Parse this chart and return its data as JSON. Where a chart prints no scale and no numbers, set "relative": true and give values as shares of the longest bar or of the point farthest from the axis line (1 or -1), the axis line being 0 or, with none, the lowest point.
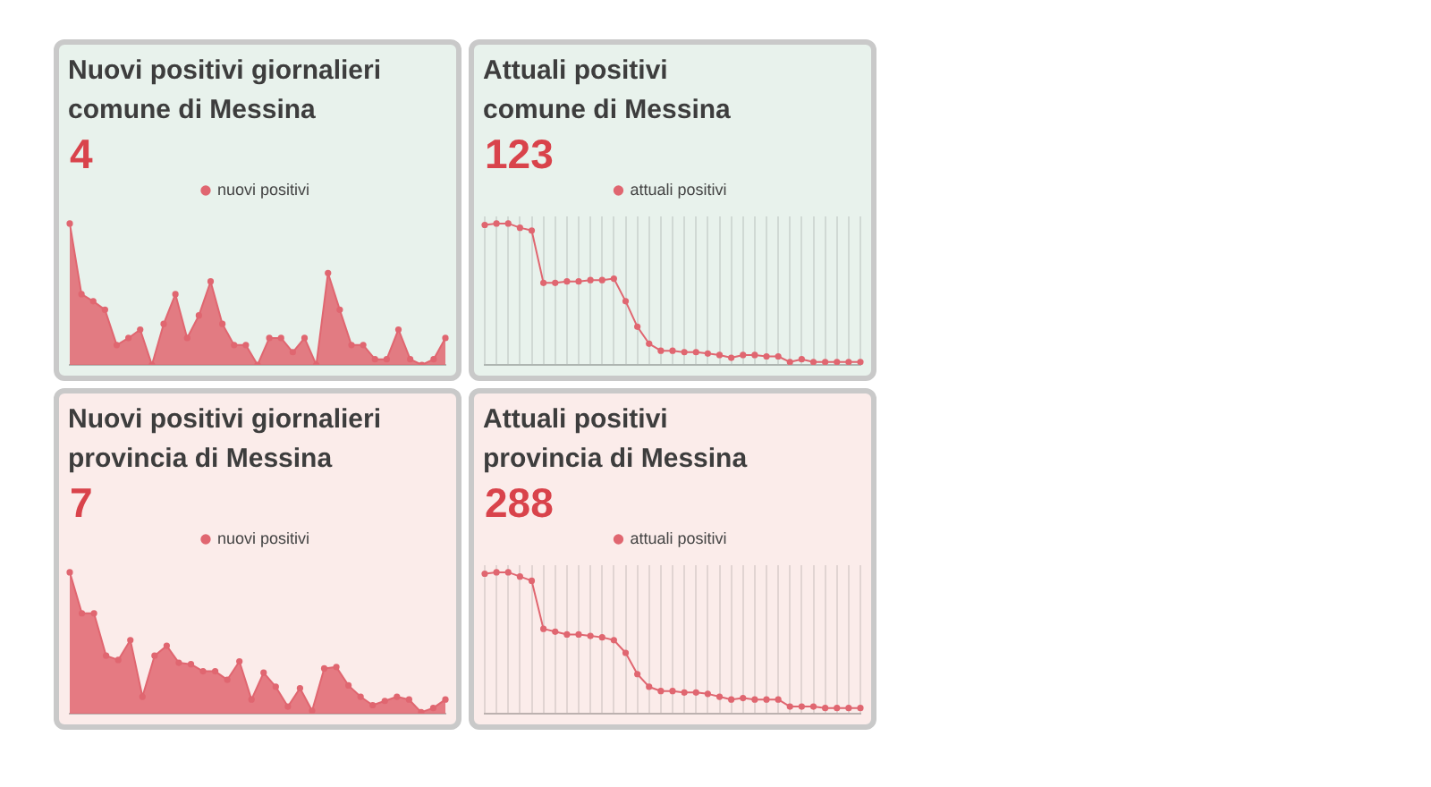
{
  "chart_data": [
    {
      "type": "area",
      "title": "Nuovi positivi giornalieri\ncomune di Messina",
      "subtitle": "4",
      "relative": true,
      "legend": "top",
      "marker": "circle",
      "categories": [
        null,
        null,
        null,
        null,
        null,
        null,
        null,
        null,
        null,
        null,
        null,
        null,
        null,
        null,
        null,
        null,
        null,
        null,
        null,
        null,
        null,
        null,
        null,
        null,
        null,
        null,
        null,
        null,
        null,
        null,
        null,
        null,
        null
      ],
      "series": [
        {
          "name": "nuovi positivi",
          "color": "#e06670",
          "values": [
            1,
            0.5,
            0.45,
            0.39,
            0.14,
            0.19,
            0.25,
            0,
            0.29,
            0.5,
            0.19,
            0.35,
            0.59,
            0.29,
            0.14,
            0.14,
            0,
            0.19,
            0.19,
            0.09,
            0.19,
            0,
            0.65,
            0.39,
            0.14,
            0.14,
            0.04,
            0.04,
            0.25,
            0.04,
            0,
            0.04,
            0.19
          ]
        }
      ]
    },
    {
      "type": "line",
      "title": "Attuali positivi\ncomune di Messina",
      "subtitle": "123",
      "relative": true,
      "legend": "top",
      "marker": "circle",
      "grid": "x",
      "categories": [
        null,
        null,
        null,
        null,
        null,
        null,
        null,
        null,
        null,
        null,
        null,
        null,
        null,
        null,
        null,
        null,
        null,
        null,
        null,
        null,
        null,
        null,
        null,
        null,
        null,
        null,
        null,
        null,
        null,
        null,
        null,
        null,
        null
      ],
      "series": [
        {
          "name": "attuali positivi",
          "color": "#e06670",
          "values": [
            0.99,
            1,
            1,
            0.97,
            0.95,
            0.58,
            0.58,
            0.59,
            0.59,
            0.6,
            0.6,
            0.61,
            0.45,
            0.27,
            0.15,
            0.1,
            0.1,
            0.09,
            0.09,
            0.08,
            0.07,
            0.05,
            0.07,
            0.07,
            0.06,
            0.06,
            0.02,
            0.04,
            0.02,
            0.02,
            0.02,
            0.02,
            0.02
          ]
        }
      ]
    },
    {
      "type": "area",
      "title": "Nuovi positivi giornalieri\nprovincia di Messina",
      "subtitle": "7",
      "relative": true,
      "legend": "top",
      "marker": "circle",
      "categories": [
        null,
        null,
        null,
        null,
        null,
        null,
        null,
        null,
        null,
        null,
        null,
        null,
        null,
        null,
        null,
        null,
        null,
        null,
        null,
        null,
        null,
        null,
        null,
        null,
        null,
        null,
        null,
        null,
        null,
        null,
        null,
        null
      ],
      "series": [
        {
          "name": "nuovi positivi",
          "color": "#e06670",
          "values": [
            1,
            0.71,
            0.71,
            0.41,
            0.38,
            0.52,
            0.12,
            0.41,
            0.48,
            0.36,
            0.35,
            0.3,
            0.3,
            0.24,
            0.37,
            0.1,
            0.29,
            0.19,
            0.05,
            0.18,
            0.02,
            0.32,
            0.33,
            0.2,
            0.12,
            0.06,
            0.09,
            0.12,
            0.1,
            0.01,
            0.04,
            0.1
          ]
        }
      ]
    },
    {
      "type": "line",
      "title": "Attuali positivi\nprovincia di Messina",
      "subtitle": "288",
      "relative": true,
      "legend": "top",
      "marker": "circle",
      "grid": "x",
      "categories": [
        null,
        null,
        null,
        null,
        null,
        null,
        null,
        null,
        null,
        null,
        null,
        null,
        null,
        null,
        null,
        null,
        null,
        null,
        null,
        null,
        null,
        null,
        null,
        null,
        null,
        null,
        null,
        null,
        null,
        null,
        null,
        null,
        null
      ],
      "series": [
        {
          "name": "attuali positivi",
          "color": "#e06670",
          "values": [
            0.99,
            1,
            1,
            0.97,
            0.94,
            0.6,
            0.58,
            0.56,
            0.56,
            0.55,
            0.54,
            0.52,
            0.43,
            0.28,
            0.19,
            0.16,
            0.16,
            0.15,
            0.15,
            0.14,
            0.12,
            0.1,
            0.11,
            0.1,
            0.1,
            0.1,
            0.05,
            0.05,
            0.05,
            0.04,
            0.04,
            0.04,
            0.04
          ]
        }
      ]
    }
  ]
}
